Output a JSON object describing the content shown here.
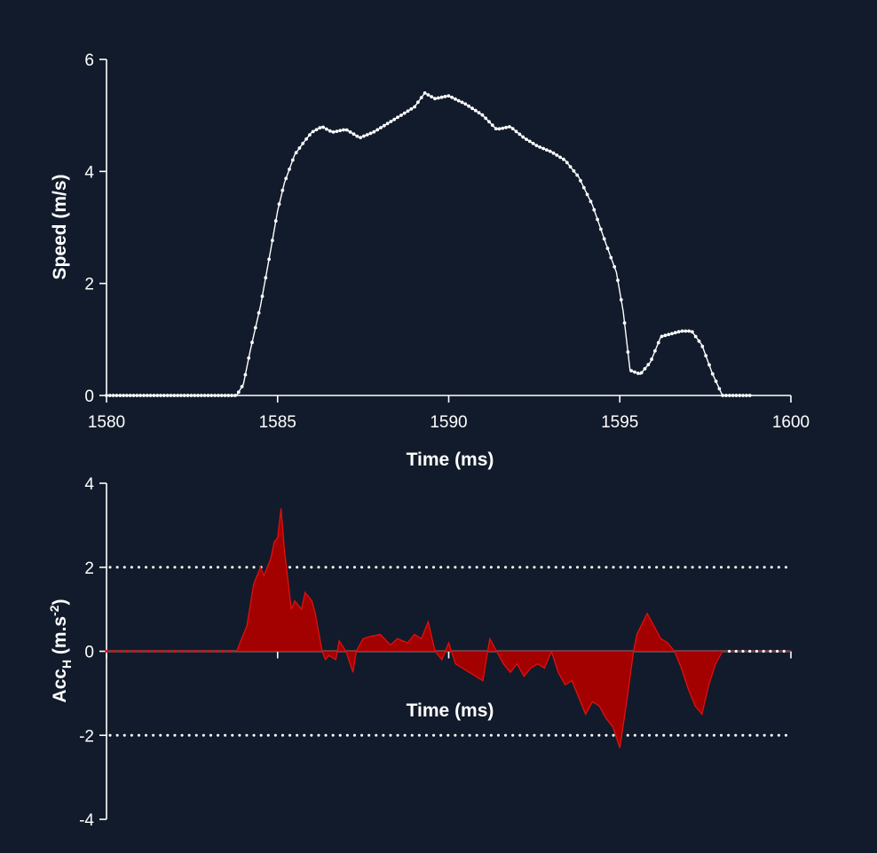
{
  "chart_data": [
    {
      "type": "line",
      "xlabel": "Time (ms)",
      "ylabel": "Speed (m/s)",
      "xlim": [
        1580,
        1600
      ],
      "ylim": [
        0,
        6
      ],
      "xticks": [
        "1580",
        "1585",
        "1590",
        "1595",
        "1600"
      ],
      "yticks": [
        "0",
        "2",
        "4",
        "6"
      ],
      "marker": "dot",
      "line_color": "#ffffff",
      "x": [
        1580.0,
        1583.8,
        1584.0,
        1584.2,
        1584.5,
        1584.8,
        1585.0,
        1585.2,
        1585.5,
        1585.8,
        1586.0,
        1586.3,
        1586.6,
        1587.0,
        1587.4,
        1587.8,
        1588.2,
        1588.6,
        1589.0,
        1589.3,
        1589.6,
        1590.0,
        1590.5,
        1591.0,
        1591.4,
        1591.8,
        1592.2,
        1592.6,
        1593.0,
        1593.4,
        1593.8,
        1594.2,
        1594.6,
        1594.9,
        1595.1,
        1595.3,
        1595.6,
        1595.9,
        1596.2,
        1596.5,
        1596.8,
        1597.1,
        1597.4,
        1597.7,
        1598.0,
        1598.2,
        1598.5,
        1598.8
      ],
      "y": [
        0.0,
        0.0,
        0.2,
        0.8,
        1.6,
        2.6,
        3.3,
        3.8,
        4.3,
        4.55,
        4.7,
        4.8,
        4.7,
        4.75,
        4.6,
        4.7,
        4.85,
        5.0,
        5.15,
        5.4,
        5.3,
        5.35,
        5.2,
        5.0,
        4.75,
        4.8,
        4.6,
        4.45,
        4.35,
        4.2,
        3.9,
        3.4,
        2.7,
        2.2,
        1.5,
        0.45,
        0.38,
        0.6,
        1.05,
        1.1,
        1.15,
        1.15,
        0.9,
        0.4,
        0.0,
        0.0,
        0.0,
        0.0
      ]
    },
    {
      "type": "area",
      "xlabel": "Time (ms)",
      "ylabel_main": "Acc",
      "ylabel_sub": "H",
      "ylabel_unit_pre": " (m.s",
      "ylabel_sup": "-2",
      "ylabel_unit_post": ")",
      "xlim": [
        1580,
        1600
      ],
      "ylim": [
        -4,
        4
      ],
      "yticks": [
        "4",
        "2",
        "0",
        "-2",
        "-4"
      ],
      "reference_lines": [
        2,
        -2
      ],
      "fill_color": "#a30000",
      "edge_color": "#e01010",
      "x": [
        1580.0,
        1583.8,
        1584.1,
        1584.3,
        1584.5,
        1584.6,
        1584.8,
        1584.9,
        1585.0,
        1585.1,
        1585.2,
        1585.4,
        1585.5,
        1585.7,
        1585.8,
        1586.0,
        1586.1,
        1586.3,
        1586.4,
        1586.5,
        1586.7,
        1586.8,
        1587.0,
        1587.2,
        1587.3,
        1587.5,
        1587.7,
        1588.0,
        1588.3,
        1588.5,
        1588.8,
        1589.0,
        1589.2,
        1589.4,
        1589.6,
        1589.8,
        1590.0,
        1590.2,
        1590.4,
        1590.6,
        1590.8,
        1591.0,
        1591.2,
        1591.4,
        1591.6,
        1591.8,
        1592.0,
        1592.2,
        1592.4,
        1592.6,
        1592.8,
        1593.0,
        1593.2,
        1593.4,
        1593.6,
        1593.8,
        1594.0,
        1594.2,
        1594.4,
        1594.6,
        1594.8,
        1595.0,
        1595.2,
        1595.4,
        1595.5,
        1595.8,
        1596.0,
        1596.2,
        1596.4,
        1596.6,
        1596.8,
        1597.0,
        1597.2,
        1597.4,
        1597.6,
        1597.8,
        1598.0,
        1598.2,
        1598.4,
        1598.6,
        1598.8,
        1599.5,
        1600.0
      ],
      "y": [
        0.0,
        0.0,
        0.6,
        1.6,
        2.0,
        1.8,
        2.2,
        2.6,
        2.7,
        3.4,
        2.4,
        1.0,
        1.2,
        1.0,
        1.4,
        1.2,
        0.9,
        0.0,
        -0.2,
        -0.1,
        -0.2,
        0.25,
        0.0,
        -0.5,
        0.0,
        0.3,
        0.35,
        0.4,
        0.15,
        0.3,
        0.2,
        0.4,
        0.3,
        0.7,
        0.0,
        -0.2,
        0.2,
        -0.3,
        -0.4,
        -0.5,
        -0.6,
        -0.7,
        0.3,
        0.0,
        -0.3,
        -0.5,
        -0.3,
        -0.6,
        -0.4,
        -0.3,
        -0.4,
        0.0,
        -0.5,
        -0.8,
        -0.7,
        -1.1,
        -1.5,
        -1.2,
        -1.3,
        -1.6,
        -1.8,
        -2.3,
        -1.2,
        0.0,
        0.4,
        0.9,
        0.6,
        0.3,
        0.2,
        0.0,
        -0.4,
        -0.9,
        -1.3,
        -1.5,
        -0.8,
        -0.3,
        0.0,
        0.0,
        0.0,
        0.0,
        0.0,
        0.0,
        0.0
      ]
    }
  ]
}
